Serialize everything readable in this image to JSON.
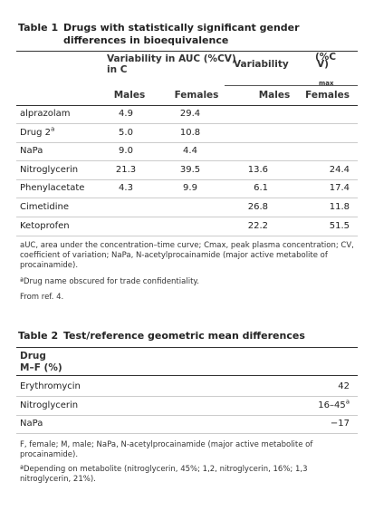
{
  "table1": {
    "label": "Table 1",
    "title": "Drugs with statistically significant gender differences in bioequivalence",
    "group_headers": [
      {
        "lines": [
          "Variability in AUC (%CV)",
          "in C"
        ]
      },
      {
        "lines": [
          "Variability",
          "(%C",
          "V)",
          "max"
        ]
      }
    ],
    "columns": [
      "Males",
      "Females",
      "Males",
      "Females"
    ],
    "rows": [
      {
        "drug": "alprazolam",
        "values": [
          "4.9",
          "29.4",
          null,
          null
        ]
      },
      {
        "drug": "Drug 2",
        "sup": "a",
        "values": [
          "5.0",
          "10.8",
          null,
          null
        ]
      },
      {
        "drug": "NaPa",
        "values": [
          "9.0",
          "4.4",
          null,
          null
        ]
      },
      {
        "drug": "Nitroglycerin",
        "values": [
          "21.3",
          "39.5",
          "13.6",
          "24.4"
        ]
      },
      {
        "drug": "Phenylacetate",
        "values": [
          "4.3",
          "9.9",
          "6.1",
          "17.4"
        ]
      },
      {
        "drug": "Cimetidine",
        "values": [
          null,
          null,
          "26.8",
          "11.8"
        ]
      },
      {
        "drug": "Ketoprofen",
        "values": [
          null,
          null,
          "22.2",
          "51.5"
        ]
      }
    ],
    "footnotes": [
      "aUC, area under the concentration–time curve; Cmax, peak plasma concentration; CV, coefficient of variation; NaPa, N-acetylprocainamide (major active metabolite of procainamide).",
      "ªDrug name obscured for trade confidentiality.",
      "From ref. 4."
    ]
  },
  "table2": {
    "label": "Table 2",
    "title": "Test/reference geometric mean differences",
    "headers": [
      "Drug",
      "M–F (%)"
    ],
    "rows": [
      {
        "drug": "Erythromycin",
        "value": "42"
      },
      {
        "drug": "Nitroglycerin",
        "value": "16–45",
        "sup": "a"
      },
      {
        "drug": "NaPa",
        "value": "−17"
      }
    ],
    "footnotes": [
      "F, female; M, male; NaPa, N-acetylprocainamide (major active metabolite of procainamide).",
      "ªDepending on metabolite (nitroglycerin, 45%; 1,2, nitroglycerin, 16%; 1,3 nitroglycerin, 21%)."
    ]
  }
}
